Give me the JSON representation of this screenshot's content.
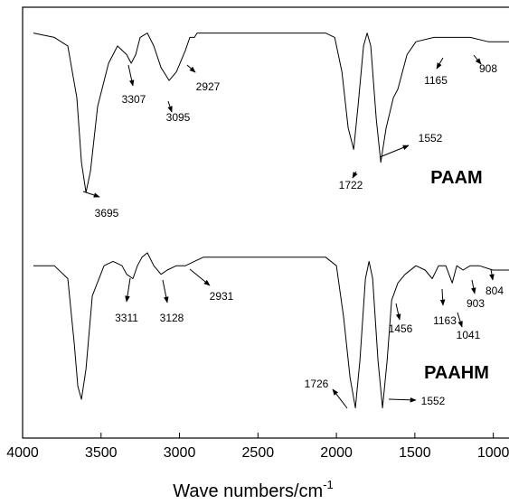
{
  "chart_data": {
    "type": "line",
    "xlabel": "Wave numbers/cm",
    "xlabel_sup": "-1",
    "xlim": [
      4000,
      900
    ],
    "ylim": [
      0,
      100
    ],
    "xticks": [
      4000,
      3500,
      3000,
      2500,
      2000,
      1500,
      1000
    ],
    "series": [
      {
        "name": "PAAM",
        "color": "#000000",
        "x": [
          3931,
          3798,
          3712,
          3654,
          3625,
          3596,
          3567,
          3522,
          3452,
          3395,
          3337,
          3308,
          3279,
          3251,
          3205,
          3164,
          3118,
          3066,
          3020,
          2962,
          2934,
          2905,
          2888,
          2703,
          2415,
          2069,
          2011,
          1965,
          1925,
          1890,
          1862,
          1827,
          1804,
          1781,
          1746,
          1717,
          1683,
          1637,
          1608,
          1550,
          1493,
          1378,
          1147,
          1032,
          899
        ],
        "values": [
          94,
          93,
          91,
          79,
          64,
          57,
          62,
          77,
          87,
          91,
          89,
          87,
          89,
          93,
          94,
          91,
          86,
          83,
          85,
          90,
          93,
          93,
          94,
          94,
          94,
          94,
          93,
          85,
          72,
          67,
          77,
          91,
          94,
          91,
          74,
          64,
          72,
          79,
          81,
          89,
          92,
          93,
          93,
          92,
          92
        ],
        "annotations": [
          "3695",
          "3307",
          "3095",
          "2927",
          "1722",
          "1552",
          "1165",
          "908"
        ]
      },
      {
        "name": "PAAHM",
        "color": "#000000",
        "x": [
          3931,
          3798,
          3712,
          3671,
          3648,
          3625,
          3596,
          3556,
          3481,
          3424,
          3366,
          3337,
          3297,
          3268,
          3239,
          3205,
          3164,
          3118,
          3078,
          3020,
          2962,
          2905,
          2847,
          2415,
          2069,
          2000,
          1954,
          1913,
          1879,
          1850,
          1815,
          1792,
          1769,
          1735,
          1706,
          1677,
          1648,
          1608,
          1562,
          1493,
          1435,
          1389,
          1349,
          1303,
          1262,
          1233,
          1193,
          1147,
          1089,
          1003,
          899
        ],
        "values": [
          40,
          40,
          37,
          22,
          12,
          9,
          16,
          33,
          40,
          41,
          40,
          38,
          37,
          40,
          42,
          43,
          40,
          38,
          39,
          40,
          40,
          41,
          42,
          42,
          42,
          40,
          28,
          14,
          7,
          18,
          37,
          41,
          37,
          18,
          7,
          18,
          32,
          36,
          38,
          40,
          39,
          37,
          40,
          40,
          36,
          40,
          39,
          40,
          40,
          39,
          39
        ],
        "annotations": [
          "3311",
          "3128",
          "2931",
          "1726",
          "1552",
          "1456",
          "1163",
          "1041",
          "903",
          "804"
        ]
      }
    ]
  }
}
